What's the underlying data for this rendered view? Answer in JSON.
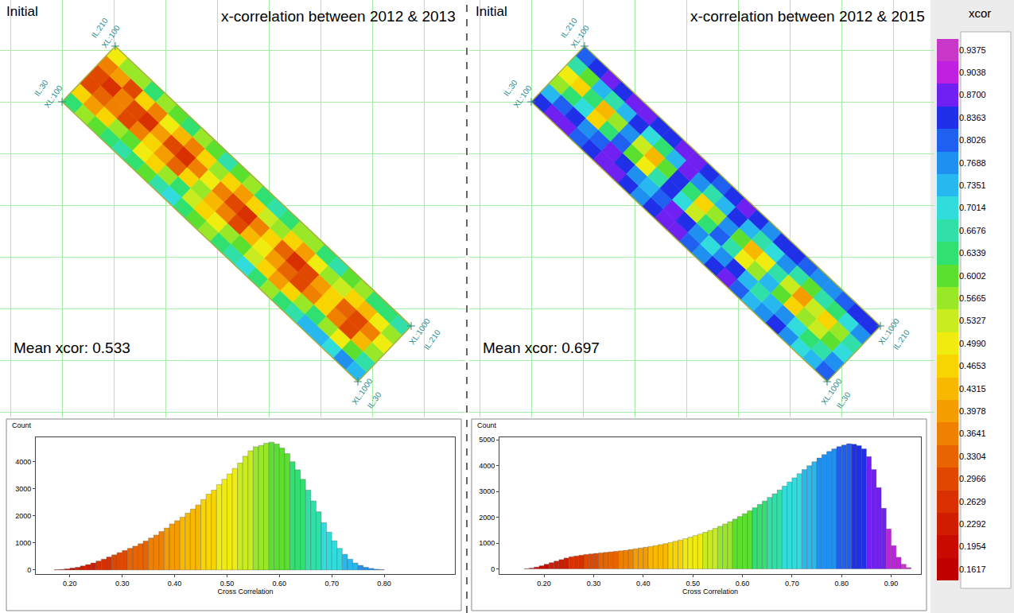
{
  "chart_data": [
    {
      "type": "map",
      "label": "Initial",
      "title": "x-correlation between 2012 & 2013",
      "annotations": [
        "Mean xcor: 0.533"
      ],
      "il": [
        30,
        210
      ],
      "xl": [
        100,
        1000
      ],
      "corners": [
        {
          "il": 30,
          "xl": 100,
          "labels": [
            "IL:30",
            "XL:100"
          ]
        },
        {
          "il": 210,
          "xl": 100,
          "labels": [
            "IL:210",
            "XL:100"
          ]
        },
        {
          "il": 210,
          "xl": 1000,
          "labels": [
            "XL:1000",
            "IL:210"
          ]
        },
        {
          "il": 30,
          "xl": 1000,
          "labels": [
            "XL:1000",
            "IL:30"
          ]
        }
      ],
      "cells": [
        [
          0.62,
          0.58,
          0.6,
          0.65,
          0.68,
          0.62,
          0.6,
          0.66,
          0.7,
          0.64,
          0.6,
          0.58,
          0.62,
          0.66,
          0.7,
          0.64,
          0.58,
          0.62,
          0.68,
          0.72,
          0.75,
          0.7,
          0.78,
          0.74
        ],
        [
          0.45,
          0.4,
          0.48,
          0.55,
          0.6,
          0.5,
          0.45,
          0.55,
          0.62,
          0.52,
          0.46,
          0.5,
          0.58,
          0.6,
          0.52,
          0.45,
          0.4,
          0.48,
          0.56,
          0.62,
          0.58,
          0.5,
          0.6,
          0.66
        ],
        [
          0.3,
          0.32,
          0.38,
          0.3,
          0.35,
          0.45,
          0.4,
          0.32,
          0.45,
          0.55,
          0.42,
          0.36,
          0.3,
          0.42,
          0.5,
          0.4,
          0.33,
          0.3,
          0.38,
          0.45,
          0.36,
          0.3,
          0.42,
          0.55
        ],
        [
          0.28,
          0.25,
          0.35,
          0.28,
          0.26,
          0.4,
          0.28,
          0.25,
          0.38,
          0.5,
          0.36,
          0.28,
          0.25,
          0.35,
          0.45,
          0.32,
          0.26,
          0.3,
          0.4,
          0.48,
          0.34,
          0.28,
          0.36,
          0.5
        ],
        [
          0.35,
          0.4,
          0.3,
          0.45,
          0.38,
          0.5,
          0.42,
          0.35,
          0.48,
          0.58,
          0.48,
          0.4,
          0.45,
          0.52,
          0.56,
          0.45,
          0.4,
          0.5,
          0.55,
          0.52,
          0.45,
          0.42,
          0.5,
          0.58
        ],
        [
          0.5,
          0.55,
          0.58,
          0.62,
          0.56,
          0.6,
          0.64,
          0.58,
          0.6,
          0.66,
          0.6,
          0.55,
          0.62,
          0.66,
          0.64,
          0.58,
          0.56,
          0.62,
          0.66,
          0.6,
          0.58,
          0.62,
          0.64,
          0.68
        ]
      ],
      "grid": true,
      "tick_labels": false
    },
    {
      "type": "histogram",
      "x_label": "Cross Correlation",
      "y_label": "Count",
      "bins": [
        0.17,
        0.18,
        0.19,
        0.2,
        0.21,
        0.22,
        0.23,
        0.24,
        0.25,
        0.26,
        0.27,
        0.28,
        0.29,
        0.3,
        0.31,
        0.32,
        0.33,
        0.34,
        0.35,
        0.36,
        0.37,
        0.38,
        0.39,
        0.4,
        0.41,
        0.42,
        0.43,
        0.44,
        0.45,
        0.46,
        0.47,
        0.48,
        0.49,
        0.5,
        0.51,
        0.52,
        0.53,
        0.54,
        0.55,
        0.56,
        0.57,
        0.58,
        0.59,
        0.6,
        0.61,
        0.62,
        0.63,
        0.64,
        0.65,
        0.66,
        0.67,
        0.68,
        0.69,
        0.7,
        0.71,
        0.72,
        0.73,
        0.74,
        0.75,
        0.76,
        0.77,
        0.78,
        0.79,
        0.8
      ],
      "counts": [
        10,
        20,
        40,
        70,
        100,
        150,
        200,
        260,
        330,
        400,
        480,
        560,
        640,
        720,
        800,
        880,
        970,
        1070,
        1180,
        1290,
        1420,
        1550,
        1700,
        1820,
        1950,
        2100,
        2250,
        2400,
        2600,
        2800,
        2950,
        3150,
        3350,
        3550,
        3750,
        3950,
        4200,
        4400,
        4550,
        4600,
        4680,
        4720,
        4650,
        4500,
        4300,
        4000,
        3700,
        3350,
        2950,
        2550,
        2150,
        1750,
        1400,
        1080,
        800,
        580,
        400,
        260,
        170,
        100,
        60,
        30,
        15
      ],
      "xlim": [
        0.135,
        0.935
      ],
      "xticks": [
        {
          "value": 0.2,
          "label": "0.20"
        },
        {
          "value": 0.3,
          "label": "0.30"
        },
        {
          "value": 0.4,
          "label": "0.40"
        },
        {
          "value": 0.5,
          "label": "0.50"
        },
        {
          "value": 0.6,
          "label": "0.60"
        },
        {
          "value": 0.7,
          "label": "0.70"
        },
        {
          "value": 0.8,
          "label": "0.80"
        }
      ],
      "ylim": [
        -150,
        4900
      ],
      "yticks": [
        0,
        1000,
        2000,
        3000,
        4000
      ]
    },
    {
      "type": "map",
      "label": "Initial",
      "title": "x-correlation between 2012 & 2015",
      "annotations": [
        "Mean xcor: 0.697"
      ],
      "il": [
        30,
        210
      ],
      "xl": [
        100,
        1000
      ],
      "corners": [
        {
          "il": 30,
          "xl": 100,
          "labels": [
            "IL:30",
            "XL:100"
          ]
        },
        {
          "il": 210,
          "xl": 100,
          "labels": [
            "IL:210",
            "XL:100"
          ]
        },
        {
          "il": 210,
          "xl": 1000,
          "labels": [
            "XL:1000",
            "IL:210"
          ]
        },
        {
          "il": 30,
          "xl": 1000,
          "labels": [
            "XL:1000",
            "IL:30"
          ]
        }
      ],
      "cells": [
        [
          0.82,
          0.86,
          0.88,
          0.8,
          0.84,
          0.88,
          0.86,
          0.82,
          0.78,
          0.84,
          0.88,
          0.86,
          0.8,
          0.76,
          0.82,
          0.86,
          0.8,
          0.74,
          0.78,
          0.82,
          0.76,
          0.7,
          0.74,
          0.8
        ],
        [
          0.72,
          0.8,
          0.85,
          0.76,
          0.8,
          0.86,
          0.82,
          0.78,
          0.72,
          0.8,
          0.86,
          0.82,
          0.76,
          0.7,
          0.78,
          0.82,
          0.74,
          0.66,
          0.72,
          0.78,
          0.7,
          0.62,
          0.68,
          0.76
        ],
        [
          0.55,
          0.62,
          0.7,
          0.48,
          0.62,
          0.8,
          0.6,
          0.5,
          0.66,
          0.84,
          0.7,
          0.52,
          0.62,
          0.8,
          0.66,
          0.5,
          0.56,
          0.74,
          0.6,
          0.46,
          0.58,
          0.52,
          0.6,
          0.7
        ],
        [
          0.5,
          0.45,
          0.62,
          0.44,
          0.55,
          0.78,
          0.52,
          0.42,
          0.6,
          0.82,
          0.64,
          0.45,
          0.55,
          0.76,
          0.6,
          0.44,
          0.5,
          0.68,
          0.52,
          0.4,
          0.52,
          0.46,
          0.55,
          0.66
        ],
        [
          0.68,
          0.6,
          0.72,
          0.66,
          0.72,
          0.84,
          0.7,
          0.64,
          0.74,
          0.86,
          0.76,
          0.66,
          0.72,
          0.82,
          0.74,
          0.66,
          0.7,
          0.78,
          0.68,
          0.6,
          0.66,
          0.62,
          0.7,
          0.76
        ],
        [
          0.8,
          0.84,
          0.86,
          0.82,
          0.86,
          0.88,
          0.84,
          0.82,
          0.86,
          0.88,
          0.84,
          0.8,
          0.84,
          0.86,
          0.82,
          0.78,
          0.82,
          0.84,
          0.8,
          0.76,
          0.78,
          0.8,
          0.82,
          0.84
        ]
      ],
      "grid": true,
      "tick_labels": false
    },
    {
      "type": "histogram",
      "x_label": "Cross Correlation",
      "y_label": "Count",
      "bins": [
        0.16,
        0.17,
        0.18,
        0.19,
        0.2,
        0.21,
        0.22,
        0.23,
        0.24,
        0.25,
        0.26,
        0.27,
        0.28,
        0.29,
        0.3,
        0.31,
        0.32,
        0.33,
        0.34,
        0.35,
        0.36,
        0.37,
        0.38,
        0.39,
        0.4,
        0.41,
        0.42,
        0.43,
        0.44,
        0.45,
        0.46,
        0.47,
        0.48,
        0.49,
        0.5,
        0.51,
        0.52,
        0.53,
        0.54,
        0.55,
        0.56,
        0.57,
        0.58,
        0.59,
        0.6,
        0.61,
        0.62,
        0.63,
        0.64,
        0.65,
        0.66,
        0.67,
        0.68,
        0.69,
        0.7,
        0.71,
        0.72,
        0.73,
        0.74,
        0.75,
        0.76,
        0.77,
        0.78,
        0.79,
        0.8,
        0.81,
        0.82,
        0.83,
        0.84,
        0.85,
        0.86,
        0.87,
        0.88,
        0.89,
        0.9,
        0.91,
        0.92,
        0.93,
        0.94
      ],
      "counts": [
        10,
        30,
        70,
        120,
        180,
        240,
        300,
        360,
        420,
        470,
        500,
        530,
        560,
        580,
        600,
        620,
        640,
        660,
        680,
        700,
        720,
        750,
        780,
        810,
        840,
        870,
        900,
        940,
        980,
        1020,
        1070,
        1120,
        1170,
        1230,
        1290,
        1350,
        1420,
        1490,
        1570,
        1650,
        1740,
        1830,
        1930,
        2030,
        2140,
        2250,
        2370,
        2500,
        2630,
        2770,
        2910,
        3060,
        3210,
        3370,
        3530,
        3690,
        3850,
        4000,
        4150,
        4300,
        4430,
        4550,
        4650,
        4740,
        4800,
        4850,
        4830,
        4780,
        4650,
        4350,
        3850,
        3150,
        2350,
        1550,
        900,
        450,
        180,
        50
      ],
      "xlim": [
        0.11,
        0.96
      ],
      "xticks": [
        {
          "value": 0.2,
          "label": "0.20"
        },
        {
          "value": 0.3,
          "label": "0.30"
        },
        {
          "value": 0.4,
          "label": "0.40"
        },
        {
          "value": 0.5,
          "label": "0.50"
        },
        {
          "value": 0.6,
          "label": "0.60"
        },
        {
          "value": 0.7,
          "label": "0.70"
        },
        {
          "value": 0.8,
          "label": "0.80"
        },
        {
          "value": 0.9,
          "label": "0.90"
        }
      ],
      "ylim": [
        -200,
        5100
      ],
      "yticks": [
        0,
        1000,
        2000,
        3000,
        4000,
        5000
      ]
    },
    {
      "type": "colorbar",
      "title": "xcor",
      "range": [
        0.145,
        0.955
      ],
      "ticks": [
        0.1617,
        0.1954,
        0.2292,
        0.2629,
        0.2966,
        0.3304,
        0.3641,
        0.3978,
        0.4315,
        0.4653,
        {
          "value": 0.499,
          "label": "0.4990"
        },
        0.5327,
        0.5665,
        0.6002,
        0.6339,
        0.6676,
        0.7014,
        0.7351,
        0.7688,
        0.8026,
        0.8363,
        {
          "value": 0.87,
          "label": "0.8700"
        },
        0.9038,
        0.9375
      ],
      "colors": [
        "#c00000",
        "#c80a00",
        "#d01c00",
        "#d83000",
        "#e04800",
        "#e86400",
        "#f08000",
        "#f59c00",
        "#f8b800",
        "#f8d400",
        "#f0ec10",
        "#c8ec20",
        "#98e828",
        "#5ce030",
        "#30e070",
        "#30e0a8",
        "#30dcdc",
        "#28b8f0",
        "#2090f0",
        "#2060f0",
        "#2030e8",
        "#7020f0",
        "#c020e0",
        "#c838c8"
      ]
    }
  ]
}
